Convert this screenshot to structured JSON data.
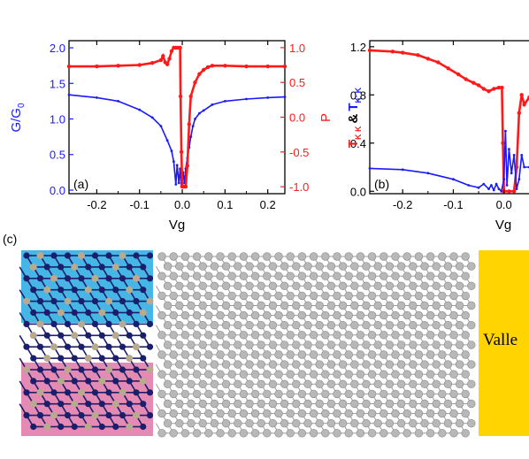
{
  "chart_data": [
    {
      "type": "line",
      "panel_label": "(a)",
      "xlabel": "Vg",
      "ylabel_left": "G/G",
      "ylabel_left_sub": "0",
      "ylabel_right": "P",
      "xlim": [
        -0.265,
        0.24
      ],
      "ylim_left": [
        -0.05,
        2.1
      ],
      "ylim_right": [
        -1.1,
        1.1
      ],
      "xticks": [
        -0.2,
        -0.1,
        0.0,
        0.1,
        0.2
      ],
      "xtick_labels": [
        "-0.2",
        "-0.1",
        "0.0",
        "0.1",
        "0.2"
      ],
      "yticks_left": [
        0.0,
        0.5,
        1.0,
        1.5,
        2.0
      ],
      "ytick_labels_left": [
        "0.0",
        "0.5",
        "1.0",
        "1.5",
        "2.0"
      ],
      "yticks_right": [
        -1.0,
        -0.5,
        0.0,
        0.5,
        1.0
      ],
      "ytick_labels_right": [
        "-1.0",
        "-0.5",
        "0.0",
        "0.5",
        "1.0"
      ],
      "series": [
        {
          "axis": "left",
          "color": "#1a1aff",
          "x": [
            -0.265,
            -0.2,
            -0.15,
            -0.1,
            -0.07,
            -0.05,
            -0.035,
            -0.025,
            -0.02,
            -0.015,
            -0.012,
            -0.008,
            -0.005,
            -0.002,
            0.002,
            0.005,
            0.008,
            0.012,
            0.016,
            0.02,
            0.025,
            0.03,
            0.04,
            0.05,
            0.07,
            0.1,
            0.15,
            0.2,
            0.24
          ],
          "y": [
            1.34,
            1.3,
            1.25,
            1.13,
            1.02,
            0.9,
            0.7,
            0.55,
            0.4,
            0.08,
            0.35,
            0.1,
            0.3,
            0.05,
            0.25,
            0.1,
            0.3,
            0.45,
            0.6,
            0.75,
            0.9,
            1.0,
            1.08,
            1.12,
            1.2,
            1.25,
            1.28,
            1.3,
            1.31
          ]
        },
        {
          "axis": "right",
          "color": "#ff1a1a",
          "x": [
            -0.265,
            -0.2,
            -0.15,
            -0.1,
            -0.07,
            -0.05,
            -0.045,
            -0.04,
            -0.035,
            -0.03,
            -0.025,
            -0.02,
            -0.015,
            -0.01,
            -0.005,
            -0.004,
            -0.002,
            0.0,
            0.003,
            0.008,
            0.012,
            0.016,
            0.02,
            0.03,
            0.04,
            0.05,
            0.06,
            0.07,
            0.1,
            0.15,
            0.2,
            0.24
          ],
          "y": [
            0.73,
            0.73,
            0.74,
            0.75,
            0.78,
            0.82,
            0.88,
            0.79,
            0.76,
            0.84,
            0.95,
            1.0,
            1.0,
            1.0,
            1.0,
            0.3,
            -0.5,
            -1.0,
            -1.0,
            -1.0,
            -0.7,
            -0.1,
            0.3,
            0.5,
            0.62,
            0.68,
            0.72,
            0.74,
            0.74,
            0.73,
            0.73,
            0.73
          ]
        }
      ]
    },
    {
      "type": "line",
      "panel_label": "(b)",
      "xlabel": "Vg",
      "ylabel_left": "T",
      "ylabel_left_sub": "K K",
      "ylabel_amp": "&",
      "ylabel_left2": "T",
      "ylabel_left2_sub": "K' K",
      "xlim": [
        -0.265,
        0.06
      ],
      "ylim_left": [
        -0.02,
        1.25
      ],
      "xticks": [
        -0.2,
        -0.1,
        0.0
      ],
      "xtick_labels": [
        "-0.2",
        "-0.1",
        "0.0"
      ],
      "yticks_left": [
        0.0,
        0.4,
        0.8,
        1.2
      ],
      "ytick_labels_left": [
        "0.0",
        "0.4",
        "0.8",
        "1.2"
      ],
      "series": [
        {
          "axis": "left",
          "color": "#ff1a1a",
          "x": [
            -0.265,
            -0.22,
            -0.2,
            -0.17,
            -0.15,
            -0.13,
            -0.11,
            -0.09,
            -0.075,
            -0.06,
            -0.05,
            -0.04,
            -0.03,
            -0.02,
            -0.01,
            -0.004,
            -0.002,
            0.0,
            0.01,
            0.02,
            0.025,
            0.03,
            0.035,
            0.04,
            0.05,
            0.06
          ],
          "y": [
            1.17,
            1.16,
            1.15,
            1.13,
            1.1,
            1.07,
            1.02,
            0.97,
            0.93,
            0.9,
            0.88,
            0.85,
            0.83,
            0.85,
            0.86,
            0.86,
            0.4,
            0.0,
            0.0,
            0.0,
            0.2,
            0.65,
            0.8,
            0.72,
            0.78,
            0.82
          ]
        },
        {
          "axis": "left",
          "color": "#1a1aff",
          "x": [
            -0.265,
            -0.2,
            -0.15,
            -0.1,
            -0.07,
            -0.05,
            -0.04,
            -0.03,
            -0.025,
            -0.02,
            -0.015,
            -0.01,
            -0.005,
            0.0,
            0.003,
            0.006,
            0.01,
            0.015,
            0.02,
            0.025,
            0.03,
            0.035,
            0.04,
            0.05,
            0.06
          ],
          "y": [
            0.19,
            0.18,
            0.15,
            0.1,
            0.05,
            0.03,
            0.06,
            0.02,
            0.05,
            0.01,
            0.06,
            0.02,
            0.0,
            0.1,
            0.5,
            0.05,
            0.35,
            0.15,
            0.3,
            0.02,
            0.1,
            0.3,
            0.2,
            0.2,
            0.23
          ]
        }
      ]
    }
  ],
  "panel_c": {
    "label": "(c)",
    "valley_text": "Valle",
    "colors": {
      "top_region": "#45b6e6",
      "bottom_region": "#e58ab4",
      "valley_box": "#ffd400",
      "dark_atom": "#1b1e6b",
      "light_atom": "#b9a98f",
      "gray_atom": "#b8b8b8",
      "bond": "#9a9a9a"
    }
  }
}
